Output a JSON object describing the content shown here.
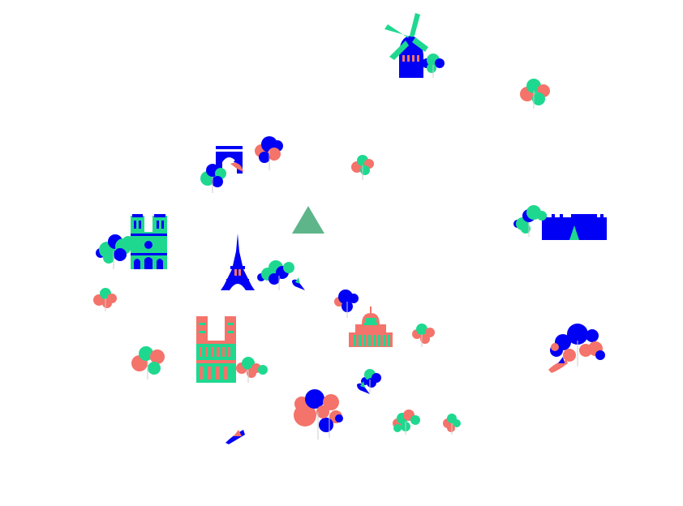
{
  "palette": {
    "blue": "#0000f5",
    "green": "#1fd890",
    "coral": "#f4736a",
    "pyramid": "#5fb58a",
    "background": "#ffffff"
  },
  "landmarks": [
    {
      "name": "moulin-rouge-windmill",
      "icon": "windmill-icon"
    },
    {
      "name": "arc-de-triomphe",
      "icon": "arch-icon"
    },
    {
      "name": "louvre-pyramid",
      "icon": "pyramid-icon"
    },
    {
      "name": "notre-dame-blue",
      "icon": "cathedral-icon"
    },
    {
      "name": "eiffel-tower",
      "icon": "tower-icon"
    },
    {
      "name": "pantheon",
      "icon": "dome-icon"
    },
    {
      "name": "notre-dame-green",
      "icon": "cathedral-icon"
    },
    {
      "name": "louvre-palace",
      "icon": "palace-icon"
    }
  ],
  "decorations": {
    "tree_groups": 19,
    "birds": 5
  }
}
